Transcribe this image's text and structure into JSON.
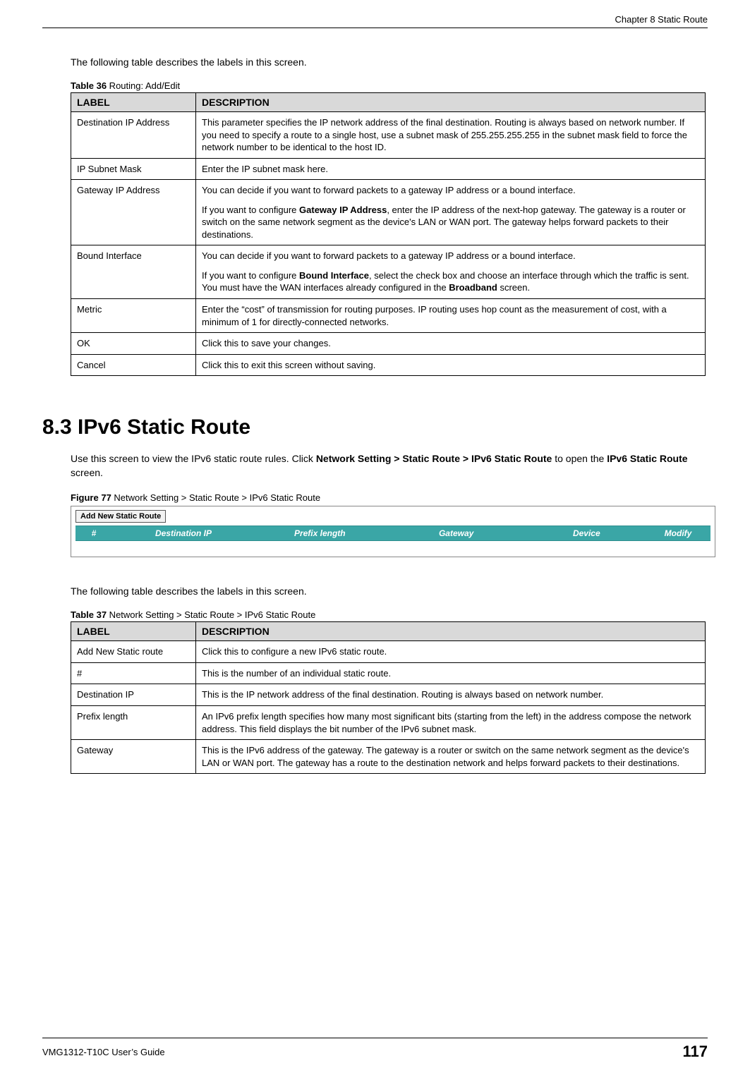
{
  "chapter_header": "Chapter 8 Static Route",
  "intro1": "The following table describes the labels in this screen.",
  "table36": {
    "caption_bold": "Table 36",
    "caption_rest": "   Routing: Add/Edit",
    "header_label": "LABEL",
    "header_desc": "DESCRIPTION",
    "rows": [
      {
        "label": "Destination IP Address",
        "desc": "This parameter specifies the IP network address of the final destination.  Routing is always based on network number. If you need to specify a route to a single host, use a subnet mask of 255.255.255.255 in the subnet mask field to force the network number to be identical to the host ID."
      },
      {
        "label": "IP Subnet Mask",
        "desc": "Enter the IP subnet mask here."
      },
      {
        "label": "Gateway IP Address",
        "desc_html": "You can decide if you want to forward packets to a gateway IP address or a bound interface.<div class='para-spacer'></div>If you want to configure <b>Gateway IP Address</b>, enter the IP address of the next-hop gateway. The gateway is a router or switch on the same network segment as the device's LAN or WAN port. The gateway helps forward packets to their destinations."
      },
      {
        "label": "Bound Interface",
        "desc_html": "You can decide if you want to forward packets to a gateway IP address or a bound interface.<div class='para-spacer'></div>If you want to configure <b>Bound Interface</b>, select the check box and choose an interface through which the traffic is sent. You must have the WAN interfaces already configured in the <b>Broadband</b> screen."
      },
      {
        "label": "Metric",
        "desc": "Enter the “cost” of transmission for routing purposes. IP routing uses hop count as the measurement of cost, with a minimum of 1 for directly-connected networks."
      },
      {
        "label": "OK",
        "desc": "Click this to save your changes."
      },
      {
        "label": "Cancel",
        "desc": "Click this to exit this screen without saving."
      }
    ]
  },
  "section_heading": "8.3  IPv6 Static Route",
  "section_body_html": "Use this screen to view the IPv6 static route rules. Click <b>Network Setting > Static Route > IPv6 Static Route</b> to open the <b>IPv6 Static Route</b> screen.",
  "figure77": {
    "caption_bold": "Figure 77",
    "caption_rest": "   Network Setting > Static Route > IPv6 Static Route",
    "button": "Add New Static Route",
    "cols": {
      "num": "#",
      "dest": "Destination IP",
      "prefix": "Prefix length",
      "gw": "Gateway",
      "dev": "Device",
      "mod": "Modify"
    },
    "header_bg": "#3aa6a6",
    "header_text_color": "#ffffff"
  },
  "intro2": "The following table describes the labels in this screen.",
  "table37": {
    "caption_bold": "Table 37",
    "caption_rest": "   Network Setting > Static Route > IPv6 Static Route",
    "header_label": "LABEL",
    "header_desc": "DESCRIPTION",
    "rows": [
      {
        "label": "Add New Static route",
        "desc": "Click this to configure a new IPv6 static route."
      },
      {
        "label": "#",
        "desc": "This is the number of an individual static route."
      },
      {
        "label": "Destination IP",
        "desc": "This is the IP network address of the final destination. Routing is always based on network number."
      },
      {
        "label": "Prefix length",
        "desc": "An IPv6 prefix length specifies how many most significant bits (starting from the left) in the address compose the network address. This field displays the bit number of the IPv6 subnet mask."
      },
      {
        "label": "Gateway",
        "desc": "This is the IPv6 address of the gateway. The gateway is a router or switch on the same network segment as the device's LAN or WAN port. The gateway has a route to the destination network and helps forward packets to their destinations."
      }
    ]
  },
  "footer_left": "VMG1312-T10C User’s Guide",
  "page_number": "117",
  "colors": {
    "table_header_bg": "#d9d9d9",
    "text": "#000000"
  }
}
